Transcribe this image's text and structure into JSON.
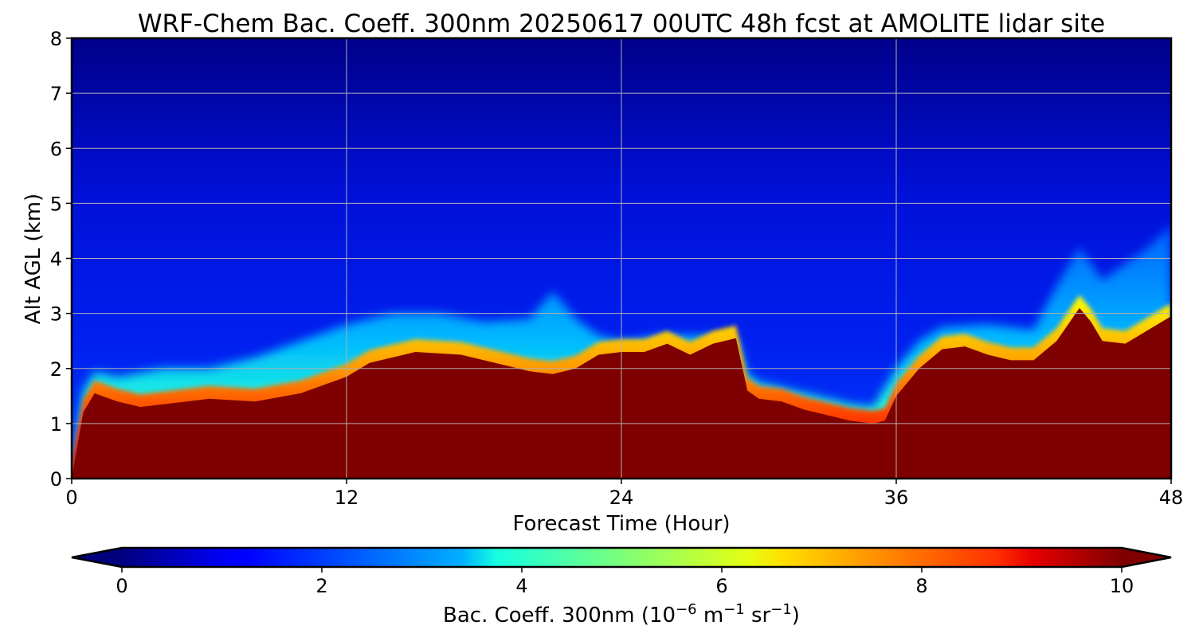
{
  "chart_data": {
    "type": "heatmap",
    "title": "WRF-Chem Bac. Coeff. 300nm  20250617 00UTC 48h fcst at AMOLITE lidar site",
    "xlabel": "Forecast Time (Hour)",
    "ylabel": "Alt AGL (km)",
    "xlim": [
      0,
      48
    ],
    "ylim": [
      0,
      8
    ],
    "x_ticks": [
      "0",
      "12",
      "24",
      "36",
      "48"
    ],
    "y_ticks": [
      "0",
      "1",
      "2",
      "3",
      "4",
      "5",
      "6",
      "7",
      "8"
    ],
    "grid": true,
    "colormap": "jet",
    "colorbar": {
      "label_main": "Bac. Coeff. 300nm  (10",
      "label_exp1": "−6",
      "label_mid": " m",
      "label_exp2": "−1",
      "label_mid2": " sr",
      "label_exp3": "−1",
      "label_end": ")",
      "range": [
        0,
        10
      ],
      "ticks": [
        "0",
        "2",
        "4",
        "6",
        "8",
        "10"
      ],
      "extend": "both",
      "orientation": "horizontal"
    },
    "saturated_layer_top_km": {
      "x": [
        0,
        0.5,
        1,
        2,
        3,
        4,
        6,
        8,
        10,
        12,
        13,
        15,
        17,
        19,
        20,
        21,
        22,
        23,
        24,
        25,
        26,
        27,
        28,
        29,
        29.5,
        30,
        31,
        32,
        33,
        34,
        35,
        35.5,
        36,
        37,
        38,
        39,
        40,
        41,
        42,
        43,
        44,
        44.5,
        45,
        46,
        47,
        48
      ],
      "y": [
        0,
        1.2,
        1.55,
        1.4,
        1.3,
        1.35,
        1.45,
        1.4,
        1.55,
        1.85,
        2.1,
        2.3,
        2.25,
        2.05,
        1.95,
        1.9,
        2.0,
        2.25,
        2.3,
        2.3,
        2.45,
        2.25,
        2.45,
        2.55,
        1.6,
        1.45,
        1.4,
        1.25,
        1.15,
        1.05,
        1.0,
        1.05,
        1.5,
        2.0,
        2.35,
        2.4,
        2.25,
        2.15,
        2.15,
        2.5,
        3.1,
        2.85,
        2.5,
        2.45,
        2.7,
        2.95
      ]
    },
    "plume_top_km": {
      "x": [
        0,
        0.5,
        1,
        2,
        4,
        6,
        8,
        10,
        12,
        14,
        16,
        18,
        20,
        21,
        22,
        23,
        24,
        26,
        28,
        29,
        29.5,
        30,
        32,
        34,
        35,
        36,
        37,
        38,
        40,
        42,
        43,
        44,
        45,
        46,
        47,
        48
      ],
      "y": [
        0,
        1.6,
        1.95,
        1.85,
        2.0,
        2.0,
        2.2,
        2.5,
        2.8,
        3.0,
        3.0,
        2.85,
        2.9,
        3.4,
        2.9,
        2.6,
        2.5,
        2.6,
        2.6,
        2.55,
        1.9,
        1.75,
        1.55,
        1.35,
        1.3,
        2.0,
        2.5,
        2.75,
        2.8,
        2.7,
        3.5,
        4.2,
        3.6,
        3.9,
        4.2,
        4.6
      ]
    },
    "background_value": 1.0
  }
}
